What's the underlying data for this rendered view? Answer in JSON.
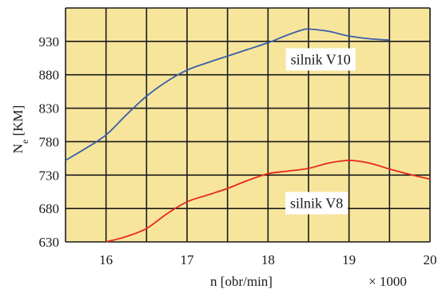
{
  "chart_data": {
    "type": "line",
    "xlabel": "n [obr/min]",
    "x_multiplier_label": "× 1000",
    "ylabel": "N",
    "ylabel_subscript": "e",
    "ylabel_unit": " [KM]",
    "xlim": [
      15.5,
      20
    ],
    "ylim": [
      630,
      980
    ],
    "x_ticks": [
      16,
      17,
      18,
      19,
      20
    ],
    "y_ticks": [
      630,
      680,
      730,
      780,
      830,
      880,
      930
    ],
    "x_gridlines": [
      15.5,
      16,
      16.5,
      17,
      17.5,
      18,
      18.5,
      19,
      19.5,
      20
    ],
    "y_gridlines": [
      630,
      680,
      730,
      780,
      830,
      880,
      930,
      980
    ],
    "grid": true,
    "background_color": "#f7e59c",
    "grid_color": "#1a1a1a",
    "series": [
      {
        "name": "silnik V10",
        "color": "#3a5fa8",
        "label_at": [
          18.65,
          903
        ],
        "x": [
          15.5,
          15.75,
          16.0,
          16.25,
          16.5,
          16.75,
          17.0,
          17.25,
          17.5,
          17.75,
          18.0,
          18.25,
          18.45,
          18.55,
          18.75,
          19.0,
          19.25,
          19.5
        ],
        "y": [
          752,
          770,
          790,
          820,
          848,
          870,
          887,
          898,
          908,
          918,
          928,
          940,
          948,
          948,
          945,
          938,
          934,
          932
        ]
      },
      {
        "name": "silnik V8",
        "color": "#e8261c",
        "label_at": [
          18.6,
          688
        ],
        "x": [
          16.0,
          16.25,
          16.5,
          16.75,
          17.0,
          17.25,
          17.5,
          17.75,
          18.0,
          18.25,
          18.5,
          18.75,
          19.0,
          19.25,
          19.5,
          19.75,
          20.0
        ],
        "y": [
          630,
          638,
          650,
          672,
          690,
          700,
          710,
          722,
          732,
          736,
          740,
          748,
          752,
          748,
          739,
          731,
          724
        ]
      }
    ]
  }
}
